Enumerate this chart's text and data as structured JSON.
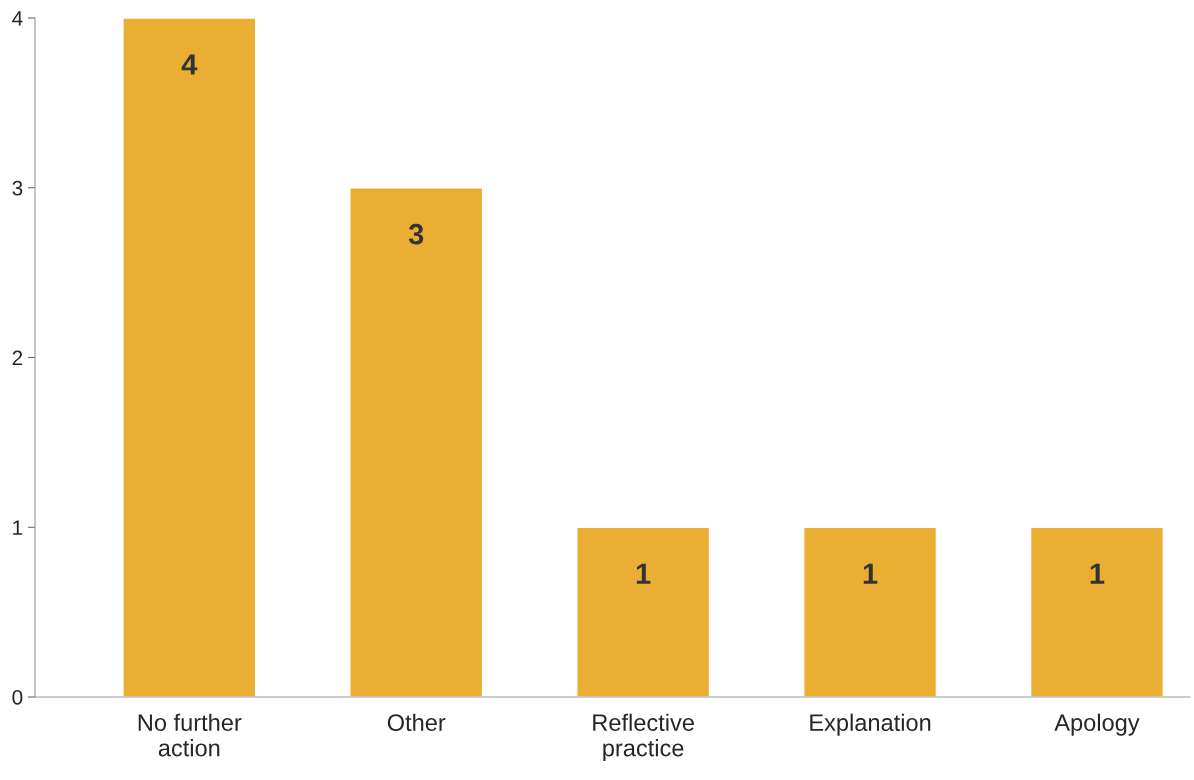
{
  "chart_data": {
    "type": "bar",
    "categories": [
      "No further\naction",
      "Other",
      "Reflective\npractice",
      "Explanation",
      "Apology"
    ],
    "values": [
      4,
      3,
      1,
      1,
      1
    ],
    "color": "#ebae34",
    "ylim": [
      0,
      4
    ],
    "yticks": [
      0,
      1,
      2,
      3,
      4
    ],
    "grid": false,
    "data_labels": true
  }
}
